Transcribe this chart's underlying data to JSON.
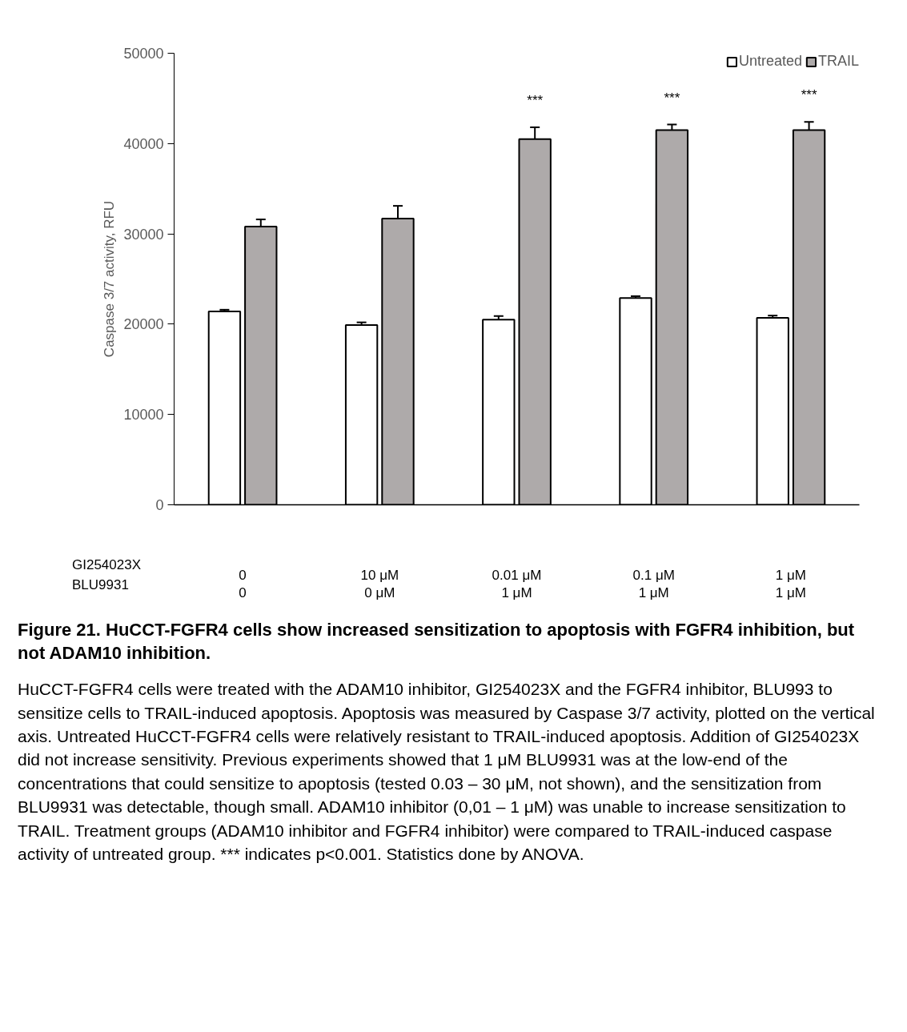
{
  "chart_data": {
    "type": "bar",
    "title": "Figure 21. HuCCT-FGFR4 cells show increased sensitization to apoptosis with FGFR4 inhibition, but not ADAM10 inhibition.",
    "ylabel": "Caspase 3/7 activity, RFU",
    "categories": [
      "0\n0",
      "10 μM\n0 μM",
      "0.01 μM\n1 μM",
      "0.1 μM\n1 μM",
      "1 μM\n1 μM"
    ],
    "series": [
      {
        "name": "Untreated",
        "color": "#ffffff",
        "values": [
          21400,
          19900,
          20500,
          22900,
          20700
        ],
        "errors": [
          200,
          300,
          400,
          200,
          250
        ]
      },
      {
        "name": "TRAIL",
        "color": "#aeaaaa",
        "values": [
          30800,
          31700,
          40500,
          41500,
          41500
        ],
        "errors": [
          800,
          1400,
          1300,
          600,
          900
        ],
        "value_labels": [
          null,
          null,
          "***",
          "***",
          "***"
        ]
      }
    ],
    "ylim": [
      0,
      50000
    ],
    "yticks": [
      0,
      10000,
      20000,
      30000,
      40000,
      50000
    ],
    "grid": false,
    "legend": "top right",
    "annotations": [
      "GI254023X",
      "BLU9931",
      "HuCCT-FGFR4 cells were treated with the ADAM10 inhibitor, GI254023X and the FGFR4 inhibitor, BLU993 to sensitize cells to TRAIL-induced apoptosis. Apoptosis was measured by Caspase 3/7 activity, plotted on the vertical axis. Untreated HuCCT-FGFR4 cells were relatively resistant to TRAIL-induced apoptosis. Addition of GI254023X did not increase sensitivity. Previous experiments showed that 1 μM BLU9931 was at the low-end of the concentrations that could sensitize to apoptosis (tested 0.03 – 30 μM, not shown), and the sensitization from BLU9931 was detectable, though small. ADAM10 inhibitor (0,01 – 1 μM) was unable to increase sensitization to TRAIL. Treatment groups (ADAM10 inhibitor and FGFR4 inhibitor) were compared to TRAIL-induced caspase activity of untreated group. *** indicates p<0.001. Statistics done by ANOVA."
    ]
  }
}
